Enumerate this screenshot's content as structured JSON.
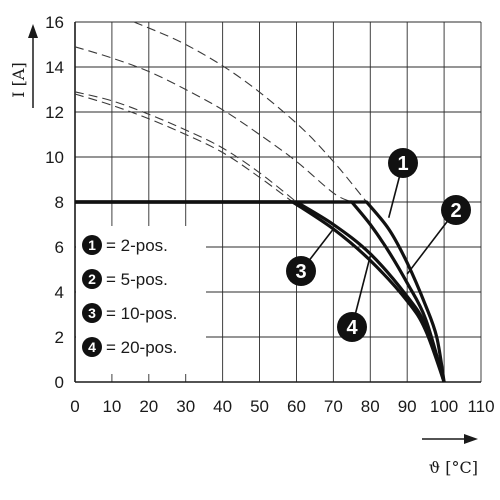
{
  "chart_data": {
    "type": "line",
    "xlabel": "ϑ [°C]",
    "ylabel": "I [A]",
    "xlim": [
      0,
      110
    ],
    "ylim": [
      0,
      16
    ],
    "x_ticks": [
      "0",
      "10",
      "20",
      "30",
      "40",
      "50",
      "60",
      "70",
      "80",
      "90",
      "100",
      "110"
    ],
    "y_ticks": [
      "0",
      "2",
      "4",
      "6",
      "8",
      "10",
      "12",
      "14",
      "16"
    ],
    "grid": true,
    "legend": [
      {
        "marker": "1",
        "label": "= 2-pos."
      },
      {
        "marker": "2",
        "label": "= 5-pos."
      },
      {
        "marker": "3",
        "label": "= 10-pos."
      },
      {
        "marker": "4",
        "label": "= 20-pos."
      }
    ],
    "series": [
      {
        "marker": "1",
        "derating": [
          [
            0,
            8
          ],
          [
            79,
            8
          ],
          [
            85,
            6.8
          ],
          [
            90,
            5.3
          ],
          [
            95,
            3.4
          ],
          [
            98,
            2
          ],
          [
            100,
            0
          ]
        ],
        "theoretical": [
          [
            16,
            16
          ],
          [
            30,
            15
          ],
          [
            45,
            13.5
          ],
          [
            60,
            11.5
          ],
          [
            70,
            9.8
          ],
          [
            79,
            8
          ]
        ]
      },
      {
        "marker": "2",
        "derating": [
          [
            0,
            8
          ],
          [
            75,
            8
          ],
          [
            80,
            7
          ],
          [
            85,
            5.8
          ],
          [
            90,
            4.4
          ],
          [
            95,
            2.8
          ],
          [
            100,
            0
          ]
        ],
        "theoretical": [
          [
            0,
            14.9
          ],
          [
            10,
            14.4
          ],
          [
            20,
            13.8
          ],
          [
            30,
            13
          ],
          [
            40,
            12.1
          ],
          [
            50,
            11
          ],
          [
            60,
            9.8
          ],
          [
            70,
            8.4
          ],
          [
            75,
            8
          ]
        ]
      },
      {
        "marker": "3",
        "derating": [
          [
            0,
            8
          ],
          [
            60,
            8
          ],
          [
            70,
            7
          ],
          [
            80,
            5.7
          ],
          [
            90,
            3.8
          ],
          [
            95,
            2.5
          ],
          [
            100,
            0
          ]
        ],
        "theoretical": [
          [
            0,
            12.9
          ],
          [
            10,
            12.5
          ],
          [
            20,
            11.9
          ],
          [
            30,
            11.2
          ],
          [
            40,
            10.4
          ],
          [
            50,
            9.3
          ],
          [
            60,
            8
          ]
        ]
      },
      {
        "marker": "4",
        "derating": [
          [
            0,
            8
          ],
          [
            59,
            8
          ],
          [
            70,
            6.8
          ],
          [
            80,
            5.4
          ],
          [
            90,
            3.6
          ],
          [
            95,
            2.3
          ],
          [
            100,
            0
          ]
        ],
        "theoretical": [
          [
            0,
            12.8
          ],
          [
            10,
            12.3
          ],
          [
            20,
            11.7
          ],
          [
            30,
            11
          ],
          [
            40,
            10.2
          ],
          [
            50,
            9.1
          ],
          [
            59,
            8
          ]
        ]
      }
    ],
    "annotations": [
      {
        "marker": "1",
        "point": [
          85,
          7.3
        ]
      },
      {
        "marker": "2",
        "point": [
          90,
          4.8
        ]
      },
      {
        "marker": "3",
        "point": [
          70,
          6.8
        ]
      },
      {
        "marker": "4",
        "point": [
          80,
          5.6
        ]
      }
    ]
  }
}
